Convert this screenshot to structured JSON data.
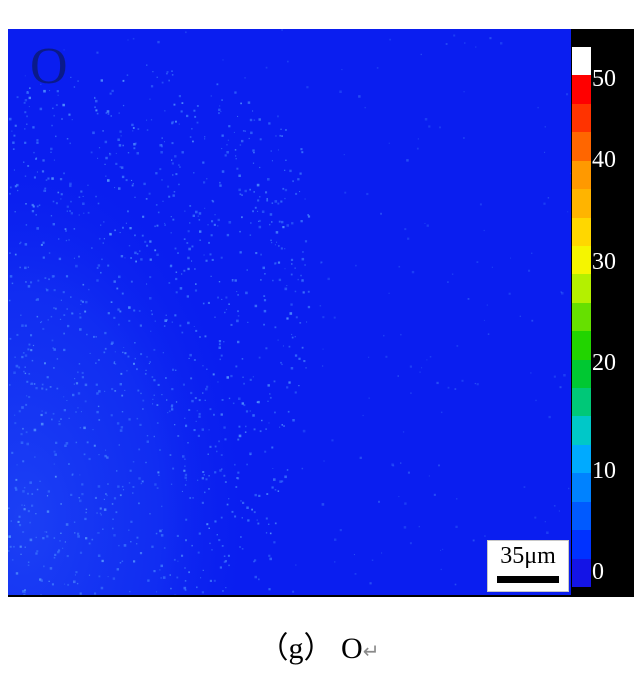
{
  "figure": {
    "element_label": "O",
    "scale_bar": "35μm",
    "colorbar": {
      "ticks": [
        "50",
        "40",
        "30",
        "20",
        "10",
        "0"
      ],
      "colors_top_to_bottom": [
        "#ffffff",
        "#ff0000",
        "#ff3300",
        "#ff6600",
        "#ff9900",
        "#ffb400",
        "#ffd700",
        "#f5f500",
        "#b4f000",
        "#66e000",
        "#22d400",
        "#00c832",
        "#00c878",
        "#00c8c8",
        "#00aaff",
        "#0082ff",
        "#005aff",
        "#0032ff",
        "#1414e6"
      ]
    },
    "map_colors": {
      "background": "#0a1ef0",
      "speckle": "#3c78ff",
      "bright_speckle": "#5aa0ff"
    }
  },
  "caption": {
    "text": "（g） O",
    "mark": "↵"
  }
}
